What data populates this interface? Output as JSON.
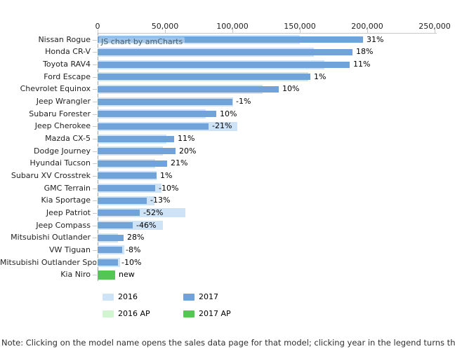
{
  "watermark": "JS chart by amCharts",
  "note": "Note: Clicking on the model name opens the sales data page for that model; clicking year in the legend turns the display for that year on/off",
  "legend": {
    "items": [
      {
        "label": "2016",
        "color": "#cfe3f7",
        "row": 0,
        "col": 0
      },
      {
        "label": "2017",
        "color": "#6fa3d9",
        "row": 0,
        "col": 1
      },
      {
        "label": "2016 AP",
        "color": "#d0f5d0",
        "row": 1,
        "col": 0
      },
      {
        "label": "2017 AP",
        "color": "#53c653",
        "row": 1,
        "col": 1
      }
    ]
  },
  "chart_data": {
    "type": "bar",
    "orientation": "horizontal",
    "title": "",
    "xlabel": "",
    "ylabel": "",
    "value_axis": {
      "position": "top",
      "range": [
        0,
        250000
      ],
      "tick_values": [
        0,
        50000,
        100000,
        150000,
        200000,
        250000
      ],
      "tick_labels": [
        "0",
        "50,000",
        "100,000",
        "150,000",
        "200,000",
        "250,000"
      ],
      "grid": false
    },
    "legend_position": "bottom",
    "series_colors": {
      "2016": "#cfe3f7",
      "2017": "#6fa3d9",
      "2016 AP": "#d0f5d0",
      "2017 AP": "#53c653"
    },
    "categories": [
      "Nissan Rogue",
      "Honda CR-V",
      "Toyota RAV4",
      "Ford Escape",
      "Chevrolet Equinox",
      "Jeep Wrangler",
      "Subaru Forester",
      "Jeep Cherokee",
      "Mazda CX-5",
      "Dodge Journey",
      "Hyundai Tucson",
      "Subaru XV Crosstrek",
      "GMC Terrain",
      "Kia Sportage",
      "Jeep Patriot",
      "Jeep Compass",
      "Mitsubishi Outlander",
      "VW Tiguan",
      "Mitsubishi Outlander Sport",
      "Kia Niro"
    ],
    "rows": [
      {
        "model": "Nissan Rogue",
        "y2016": 150000,
        "y2017": 197000,
        "change_label": "31%",
        "bar_series": "2017"
      },
      {
        "model": "Honda CR-V",
        "y2016": 160500,
        "y2017": 189000,
        "change_label": "18%",
        "bar_series": "2017"
      },
      {
        "model": "Toyota RAV4",
        "y2016": 168000,
        "y2017": 186800,
        "change_label": "11%",
        "bar_series": "2017"
      },
      {
        "model": "Ford Escape",
        "y2016": 156000,
        "y2017": 157800,
        "change_label": "1%",
        "bar_series": "2017"
      },
      {
        "model": "Chevrolet Equinox",
        "y2016": 122300,
        "y2017": 134400,
        "change_label": "10%",
        "bar_series": "2017"
      },
      {
        "model": "Jeep Wrangler",
        "y2016": 100600,
        "y2017": 99900,
        "change_label": "-1%",
        "bar_series": "2017"
      },
      {
        "model": "Subaru Forester",
        "y2016": 80000,
        "y2017": 87900,
        "change_label": "10%",
        "bar_series": "2017"
      },
      {
        "model": "Jeep Cherokee",
        "y2016": 103700,
        "y2017": 82400,
        "change_label": "-21%",
        "bar_series": "2017"
      },
      {
        "model": "Mazda CX-5",
        "y2016": 51200,
        "y2017": 56800,
        "change_label": "11%",
        "bar_series": "2017"
      },
      {
        "model": "Dodge Journey",
        "y2016": 48200,
        "y2017": 57900,
        "change_label": "20%",
        "bar_series": "2017"
      },
      {
        "model": "Hyundai Tucson",
        "y2016": 42600,
        "y2017": 51600,
        "change_label": "21%",
        "bar_series": "2017"
      },
      {
        "model": "Subaru XV Crosstrek",
        "y2016": 43500,
        "y2017": 44000,
        "change_label": "1%",
        "bar_series": "2017"
      },
      {
        "model": "GMC Terrain",
        "y2016": 47200,
        "y2017": 42500,
        "change_label": "-10%",
        "bar_series": "2017"
      },
      {
        "model": "Kia Sportage",
        "y2016": 42000,
        "y2017": 36500,
        "change_label": "-13%",
        "bar_series": "2017"
      },
      {
        "model": "Jeep Patriot",
        "y2016": 65000,
        "y2017": 31200,
        "change_label": "-52%",
        "bar_series": "2017"
      },
      {
        "model": "Jeep Compass",
        "y2016": 48600,
        "y2017": 26200,
        "change_label": "-46%",
        "bar_series": "2017"
      },
      {
        "model": "Mitsubishi Outlander",
        "y2016": 15000,
        "y2017": 19200,
        "change_label": "28%",
        "bar_series": "2017"
      },
      {
        "model": "VW Tiguan",
        "y2016": 19800,
        "y2017": 18200,
        "change_label": "-8%",
        "bar_series": "2017"
      },
      {
        "model": "Mitsubishi Outlander Sport",
        "y2016": 16800,
        "y2017": 15100,
        "change_label": "-10%",
        "bar_series": "2017"
      },
      {
        "model": "Kia Niro",
        "y2016": null,
        "y2017": 13200,
        "change_label": "new",
        "bar_series": "2017 AP"
      }
    ]
  }
}
